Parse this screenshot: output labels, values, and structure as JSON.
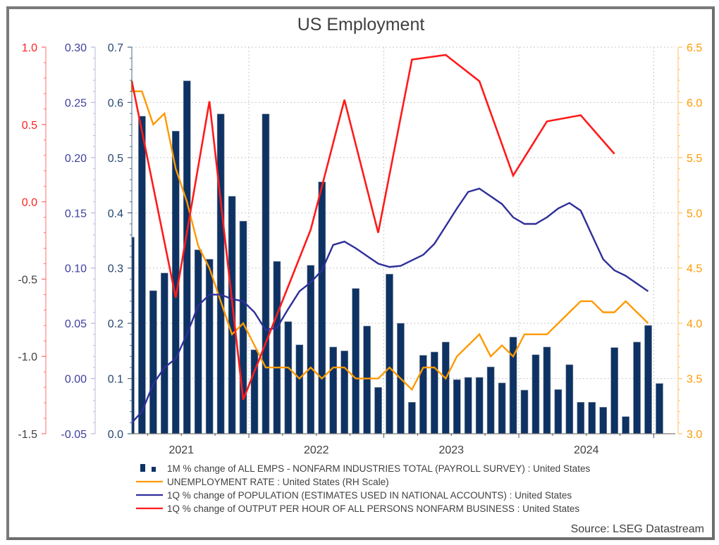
{
  "chart_data": {
    "type": "bar+line",
    "title": "US Employment",
    "source": "Source: LSEG Datastream",
    "x_tick_labels": [
      "2021",
      "2022",
      "2023",
      "2024"
    ],
    "axes": {
      "red_left": {
        "color": "#ff2020",
        "negative_label_color": "#404040",
        "range": [
          -1.5,
          1.0
        ],
        "ticks": [
          "1.0",
          "0.5",
          "0.0",
          "-0.5",
          "-1.0",
          "-1.5"
        ],
        "tick_values": [
          1.0,
          0.5,
          0.0,
          -0.5,
          -1.0,
          -1.5
        ]
      },
      "blue_left": {
        "color": "#3f3f9f",
        "range": [
          -0.05,
          0.3
        ],
        "ticks": [
          "0.30",
          "0.25",
          "0.20",
          "0.15",
          "0.10",
          "0.05",
          "0.00",
          "-0.05"
        ],
        "tick_values": [
          0.3,
          0.25,
          0.2,
          0.15,
          0.1,
          0.05,
          0.0,
          -0.05
        ]
      },
      "bars_left": {
        "color": "#25476f",
        "range": [
          0.0,
          0.7
        ],
        "ticks": [
          "0.7",
          "0.6",
          "0.5",
          "0.4",
          "0.3",
          "0.2",
          "0.1",
          "0.0"
        ],
        "tick_values": [
          0.7,
          0.6,
          0.5,
          0.4,
          0.3,
          0.2,
          0.1,
          0.0
        ]
      },
      "orange_right": {
        "color": "#ff9900",
        "range": [
          3.0,
          6.5
        ],
        "ticks": [
          "6.5",
          "6.0",
          "5.5",
          "5.0",
          "4.5",
          "4.0",
          "3.5",
          "3.0"
        ],
        "tick_values": [
          6.5,
          6.0,
          5.5,
          5.0,
          4.5,
          4.0,
          3.5,
          3.0
        ]
      }
    },
    "grid": true,
    "legend_position": "bottom",
    "series": [
      {
        "name": "1M % change of ALL EMPS - NONFARM INDUSTRIES TOTAL (PAYROLL SURVEY) : United States",
        "type": "bar",
        "axis": "bars_left",
        "color": "#0d3263",
        "start": "2021-02",
        "frequency": "monthly",
        "values": [
          0.356,
          0.575,
          0.259,
          0.291,
          0.548,
          0.639,
          0.333,
          0.316,
          0.579,
          0.43,
          0.385,
          0.152,
          0.579,
          0.312,
          0.203,
          0.161,
          0.305,
          0.456,
          0.157,
          0.15,
          0.263,
          0.195,
          0.084,
          0.289,
          0.2,
          0.057,
          0.142,
          0.148,
          0.166,
          0.098,
          0.102,
          0.102,
          0.121,
          0.092,
          0.175,
          0.079,
          0.143,
          0.157,
          0.08,
          0.125,
          0.057,
          0.057,
          0.048,
          0.156,
          0.031,
          0.166,
          0.196,
          0.091
        ]
      },
      {
        "name": "UNEMPLOYMENT RATE : United States (RH Scale)",
        "type": "line",
        "axis": "orange_right",
        "color": "#ff9900",
        "start": "2021-01",
        "frequency": "monthly",
        "values": [
          6.2,
          6.1,
          6.1,
          5.8,
          5.9,
          5.4,
          5.1,
          4.7,
          4.5,
          4.2,
          3.9,
          4.0,
          3.8,
          3.6,
          3.6,
          3.6,
          3.5,
          3.6,
          3.5,
          3.6,
          3.6,
          3.5,
          3.5,
          3.5,
          3.6,
          3.5,
          3.4,
          3.6,
          3.6,
          3.5,
          3.7,
          3.8,
          3.9,
          3.7,
          3.8,
          3.7,
          3.9,
          3.9,
          3.9,
          4.0,
          4.1,
          4.2,
          4.2,
          4.1,
          4.1,
          4.2,
          4.1,
          4.0
        ]
      },
      {
        "name": "1Q % change of POPULATION (ESTIMATES USED IN NATIONAL ACCOUNTS) : United States",
        "type": "line",
        "axis": "blue_left",
        "color": "#2e2e9a",
        "start": "2021-02",
        "frequency": "monthly",
        "values": [
          -0.04,
          -0.03,
          -0.005,
          0.01,
          0.018,
          0.04,
          0.066,
          0.076,
          0.076,
          0.072,
          0.07,
          0.06,
          0.044,
          0.046,
          0.063,
          0.079,
          0.087,
          0.098,
          0.121,
          0.124,
          0.118,
          0.111,
          0.104,
          0.101,
          0.102,
          0.107,
          0.112,
          0.122,
          0.138,
          0.154,
          0.169,
          0.172,
          0.165,
          0.158,
          0.146,
          0.14,
          0.14,
          0.146,
          0.154,
          0.159,
          0.152,
          0.13,
          0.108,
          0.098,
          0.093,
          0.086,
          0.079
        ]
      },
      {
        "name": "1Q % change of OUTPUT PER HOUR OF ALL PERSONS NONFARM BUSINESS : United States",
        "type": "line",
        "axis": "red_left",
        "color": "#ff1a1a",
        "start": "2021-01",
        "frequency": "quarterly-points",
        "points": [
          {
            "date": "2021-01",
            "value": 0.78
          },
          {
            "date": "2021-06",
            "value": -0.62
          },
          {
            "date": "2021-09",
            "value": 0.65
          },
          {
            "date": "2021-12",
            "value": -1.28
          },
          {
            "date": "2022-06",
            "value": -0.18
          },
          {
            "date": "2022-09",
            "value": 0.66
          },
          {
            "date": "2022-12",
            "value": -0.2
          },
          {
            "date": "2023-03",
            "value": 0.92
          },
          {
            "date": "2023-06",
            "value": 0.95
          },
          {
            "date": "2023-09",
            "value": 0.78
          },
          {
            "date": "2023-12",
            "value": 0.17
          },
          {
            "date": "2024-03",
            "value": 0.52
          },
          {
            "date": "2024-06",
            "value": 0.56
          },
          {
            "date": "2024-09",
            "value": 0.31
          }
        ]
      }
    ]
  },
  "legend": {
    "items": [
      {
        "label": "1M % change of ALL EMPS - NONFARM INDUSTRIES TOTAL (PAYROLL SURVEY) : United States",
        "swatch": "bar",
        "color": "#0d3263"
      },
      {
        "label": "UNEMPLOYMENT RATE : United States (RH Scale)",
        "swatch": "line",
        "color": "#ff9900"
      },
      {
        "label": "1Q % change of POPULATION (ESTIMATES USED IN NATIONAL ACCOUNTS) : United States",
        "swatch": "line",
        "color": "#2e2e9a"
      },
      {
        "label": "1Q % change of OUTPUT PER HOUR OF ALL PERSONS NONFARM BUSINESS : United States",
        "swatch": "line",
        "color": "#ff1a1a"
      }
    ]
  }
}
